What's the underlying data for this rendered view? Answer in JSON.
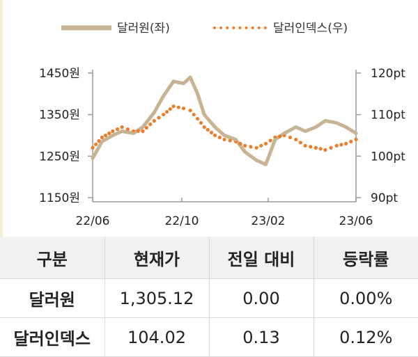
{
  "legend": {
    "series1": "달러원(좌)",
    "series2": "달러인덱스(우)"
  },
  "colors": {
    "krw": "#c8b393",
    "dxy": "#ee7d2a",
    "axis": "#9a9a9a"
  },
  "chart_data": {
    "type": "line",
    "x_ticks": [
      "22/06",
      "22/10",
      "23/02",
      "23/06"
    ],
    "y_left": {
      "ticks": [
        "1450원",
        "1350원",
        "1250원",
        "1150원"
      ],
      "range": [
        1150,
        1450
      ]
    },
    "y_right": {
      "ticks": [
        "120pt",
        "110pt",
        "100pt",
        "90pt"
      ],
      "range": [
        90,
        120
      ]
    },
    "series": [
      {
        "name": "달러원(좌)",
        "axis": "left",
        "style": "solid",
        "x": [
          "2022-06-01",
          "2022-06-15",
          "2022-07-01",
          "2022-07-15",
          "2022-08-01",
          "2022-08-15",
          "2022-09-01",
          "2022-09-15",
          "2022-09-30",
          "2022-10-15",
          "2022-10-25",
          "2022-11-05",
          "2022-11-15",
          "2022-12-01",
          "2022-12-15",
          "2023-01-01",
          "2023-01-15",
          "2023-02-01",
          "2023-02-15",
          "2023-03-01",
          "2023-03-15",
          "2023-04-01",
          "2023-04-15",
          "2023-05-01",
          "2023-05-15",
          "2023-06-01",
          "2023-06-15",
          "2023-06-30"
        ],
        "values": [
          1245,
          1285,
          1300,
          1310,
          1305,
          1320,
          1355,
          1395,
          1430,
          1425,
          1440,
          1400,
          1350,
          1320,
          1300,
          1290,
          1260,
          1240,
          1230,
          1290,
          1305,
          1320,
          1310,
          1320,
          1335,
          1330,
          1320,
          1305.12
        ]
      },
      {
        "name": "달러인덱스(우)",
        "axis": "right",
        "style": "dotted",
        "x": [
          "2022-06-01",
          "2022-06-15",
          "2022-07-01",
          "2022-07-15",
          "2022-08-01",
          "2022-08-15",
          "2022-09-01",
          "2022-09-15",
          "2022-09-30",
          "2022-10-15",
          "2022-10-25",
          "2022-11-05",
          "2022-11-15",
          "2022-12-01",
          "2022-12-15",
          "2023-01-01",
          "2023-01-15",
          "2023-02-01",
          "2023-02-15",
          "2023-03-01",
          "2023-03-15",
          "2023-04-01",
          "2023-04-15",
          "2023-05-01",
          "2023-05-15",
          "2023-06-01",
          "2023-06-15",
          "2023-06-30"
        ],
        "values": [
          102,
          104.5,
          106,
          107,
          106,
          106,
          108.5,
          110,
          112,
          111.5,
          111,
          109,
          107,
          105,
          104,
          103.5,
          102.5,
          102,
          103,
          104.5,
          105,
          104,
          102.5,
          102,
          101.5,
          102.5,
          103,
          104.02
        ]
      }
    ]
  },
  "table": {
    "headers": [
      "구분",
      "현재가",
      "전일 대비",
      "등락률"
    ],
    "rows": [
      [
        "달러원",
        "1,305.12",
        "0.00",
        "0.00%"
      ],
      [
        "달러인덱스",
        "104.02",
        "0.13",
        "0.12%"
      ]
    ]
  }
}
